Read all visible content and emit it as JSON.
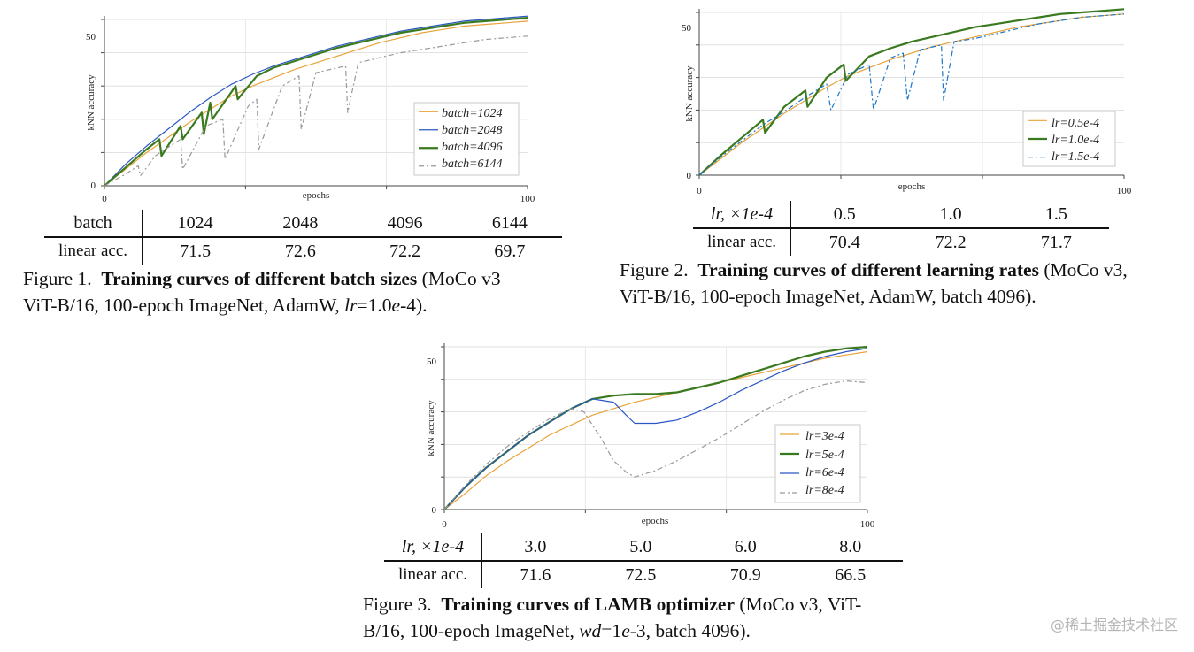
{
  "charts": [
    {
      "type": "line",
      "xlabel": "epochs",
      "ylabel": "kNN accuracy",
      "xlim": [
        0,
        100
      ],
      "ylim": [
        0,
        50
      ],
      "xticks": [
        "0",
        "100"
      ],
      "yticks": [
        "0",
        "50"
      ],
      "legend_position": "lower-right",
      "series": [
        {
          "name": "batch=1024",
          "color": "#e8a33a",
          "width": 1.2,
          "dash": "",
          "x": [
            0,
            5,
            10,
            15,
            20,
            25,
            30,
            35,
            40,
            45,
            50,
            55,
            60,
            65,
            70,
            75,
            80,
            85,
            90,
            95,
            100
          ],
          "y": [
            0,
            5,
            10,
            14.5,
            19,
            23,
            27,
            30,
            32.5,
            35,
            37,
            39,
            41,
            43,
            44.5,
            46,
            47,
            48,
            48.5,
            49,
            49.5
          ]
        },
        {
          "name": "batch=2048",
          "color": "#2b57c4",
          "width": 1.2,
          "dash": "",
          "x": [
            0,
            5,
            10,
            15,
            20,
            25,
            30,
            35,
            40,
            45,
            50,
            55,
            60,
            65,
            70,
            75,
            80,
            85,
            90,
            95,
            100
          ],
          "y": [
            0,
            6.5,
            12,
            17,
            22,
            26.5,
            30.5,
            33.5,
            36,
            38,
            40,
            42,
            43.5,
            45,
            46.5,
            47.5,
            48.5,
            49.5,
            50,
            50.5,
            51
          ]
        },
        {
          "name": "batch=4096",
          "color": "#3a7a1e",
          "width": 2.2,
          "dash": "",
          "x": [
            0,
            5,
            10,
            13,
            13.5,
            18,
            18.5,
            23,
            23.5,
            25,
            25.5,
            31,
            31.5,
            36,
            40,
            45,
            50,
            55,
            60,
            65,
            70,
            75,
            80,
            85,
            90,
            95,
            100
          ],
          "y": [
            0,
            5.5,
            11,
            14,
            9,
            18,
            14,
            22,
            15.5,
            25,
            20,
            30,
            26,
            33,
            35.5,
            37.5,
            39.5,
            41.5,
            43,
            44.5,
            46,
            47,
            48,
            49,
            49.5,
            50,
            50.5
          ]
        },
        {
          "name": "batch=6144",
          "color": "#999999",
          "width": 1.2,
          "dash": "6,3,2,3",
          "x": [
            0,
            5,
            8,
            8.5,
            12,
            18,
            18.5,
            24,
            28,
            28.5,
            34,
            36,
            36.5,
            42,
            46,
            46.5,
            50,
            57,
            57.5,
            60,
            65,
            70,
            75,
            80,
            85,
            90,
            95,
            100
          ],
          "y": [
            0,
            3.5,
            6,
            3,
            9,
            14,
            5,
            18,
            20,
            8,
            24,
            26,
            11,
            30,
            33,
            17,
            34,
            36,
            22,
            37,
            38.5,
            40,
            41,
            42,
            43,
            44,
            44.5,
            45
          ]
        }
      ]
    },
    {
      "type": "line",
      "xlabel": "epochs",
      "ylabel": "kNN accuracy",
      "xlim": [
        0,
        100
      ],
      "ylim": [
        0,
        50
      ],
      "xticks": [
        "0",
        "100"
      ],
      "yticks": [
        "0",
        "50"
      ],
      "legend_position": "lower-right",
      "series": [
        {
          "name": "lr=0.5e-4",
          "color": "#e8a33a",
          "width": 1.2,
          "dash": "",
          "x": [
            0,
            5,
            10,
            15,
            20,
            25,
            30,
            35,
            40,
            45,
            50,
            55,
            60,
            65,
            70,
            75,
            80,
            85,
            90,
            95,
            100
          ],
          "y": [
            0,
            5,
            10,
            14.5,
            19,
            23,
            27,
            30.5,
            33,
            35.5,
            37.5,
            39.5,
            41,
            42.5,
            44,
            45.5,
            46.5,
            47.5,
            48.5,
            49,
            49.5
          ]
        },
        {
          "name": "lr=1.0e-4",
          "color": "#3a7a1e",
          "width": 2.2,
          "dash": "",
          "x": [
            0,
            5,
            10,
            15,
            15.5,
            20,
            25,
            25.5,
            30,
            34,
            34.5,
            40,
            45,
            50,
            55,
            60,
            65,
            70,
            75,
            80,
            85,
            90,
            95,
            100
          ],
          "y": [
            0,
            6,
            11.5,
            17,
            13,
            21,
            26,
            21,
            30,
            34,
            29,
            36.5,
            39,
            41,
            42.5,
            44,
            45.5,
            46.5,
            47.5,
            48.5,
            49.5,
            50,
            50.5,
            51
          ]
        },
        {
          "name": "lr=1.5e-4",
          "color": "#1a77c9",
          "width": 1.2,
          "dash": "6,3,2,3",
          "x": [
            0,
            5,
            10,
            15,
            20,
            25,
            30,
            31,
            35,
            40,
            41,
            45,
            48,
            49,
            52,
            57,
            57.5,
            60,
            65,
            70,
            75,
            80,
            85,
            90,
            95,
            100
          ],
          "y": [
            0,
            5.5,
            10.5,
            15.5,
            19.5,
            24,
            28,
            20,
            31,
            34,
            20,
            36,
            37.5,
            23,
            38.5,
            40,
            23,
            41,
            42,
            43.5,
            45,
            46.5,
            47.5,
            48.5,
            49,
            49.5
          ]
        }
      ]
    },
    {
      "type": "line",
      "xlabel": "epochs",
      "ylabel": "kNN accuracy",
      "xlim": [
        0,
        100
      ],
      "ylim": [
        0,
        50
      ],
      "xticks": [
        "0",
        "100"
      ],
      "yticks": [
        "0",
        "50"
      ],
      "legend_position": "lower-right",
      "series": [
        {
          "name": "lr=3e-4",
          "color": "#e8a33a",
          "width": 1.2,
          "dash": "",
          "x": [
            0,
            5,
            10,
            15,
            20,
            25,
            30,
            35,
            40,
            45,
            50,
            55,
            60,
            65,
            70,
            75,
            80,
            85,
            90,
            95,
            100
          ],
          "y": [
            0,
            5,
            10.5,
            15,
            19,
            23,
            26,
            29,
            31,
            33,
            34.5,
            36,
            37.5,
            39,
            40.5,
            42,
            43.5,
            45,
            46.5,
            47.5,
            48.5
          ]
        },
        {
          "name": "lr=5e-4",
          "color": "#3a7a1e",
          "width": 2.2,
          "dash": "",
          "x": [
            0,
            5,
            10,
            15,
            20,
            25,
            30,
            35,
            40,
            45,
            50,
            55,
            60,
            65,
            70,
            75,
            80,
            85,
            90,
            95,
            100
          ],
          "y": [
            0,
            7,
            13,
            18,
            23,
            27,
            31,
            34,
            35,
            35.5,
            35.5,
            36,
            37.5,
            39,
            41,
            43,
            45,
            47,
            48.5,
            49.5,
            50
          ]
        },
        {
          "name": "lr=6e-4",
          "color": "#2b57c4",
          "width": 1.2,
          "dash": "",
          "x": [
            0,
            5,
            10,
            15,
            20,
            25,
            30,
            35,
            40,
            43,
            45,
            50,
            55,
            60,
            65,
            70,
            75,
            80,
            85,
            90,
            95,
            100
          ],
          "y": [
            0,
            7,
            13,
            18,
            23,
            27,
            31,
            34,
            33,
            29,
            26.5,
            26.5,
            27.5,
            30,
            33,
            36.5,
            39.5,
            42.5,
            45,
            47,
            48.5,
            49.5
          ]
        },
        {
          "name": "lr=8e-4",
          "color": "#999999",
          "width": 1.2,
          "dash": "6,3,2,3",
          "x": [
            0,
            5,
            10,
            15,
            20,
            25,
            30,
            33,
            37,
            40,
            43,
            45,
            50,
            55,
            60,
            65,
            70,
            75,
            80,
            85,
            90,
            95,
            100
          ],
          "y": [
            0,
            7.5,
            14,
            19.5,
            24,
            28,
            31,
            30,
            22,
            15,
            11.5,
            10,
            12,
            15,
            18.5,
            22,
            26,
            30,
            33.5,
            36.5,
            38.5,
            39.5,
            39
          ]
        }
      ]
    }
  ],
  "fig1": {
    "xlabel": "epochs",
    "ylabel": "kNN accuracy",
    "tick_x0": "0",
    "tick_x1": "100",
    "tick_y0": "0",
    "tick_y1": "50",
    "legend": [
      "batch=1024",
      "batch=2048",
      "batch=4096",
      "batch=6144"
    ],
    "table": {
      "header": [
        "batch",
        "1024",
        "2048",
        "4096",
        "6144"
      ],
      "row": [
        "linear acc.",
        "71.5",
        "72.6",
        "72.2",
        "69.7"
      ]
    },
    "caption": {
      "label": "Figure 1.",
      "title": "Training curves of different batch sizes",
      "rest_a": " (MoCo v3",
      "rest_b": "ViT-B/16, 100-epoch ImageNet, AdamW, ",
      "var": "lr",
      "rest_c": "=1.0",
      "var2": "e",
      "rest_d": "-4)."
    }
  },
  "fig2": {
    "xlabel": "epochs",
    "ylabel": "kNN accuracy",
    "tick_x0": "0",
    "tick_x1": "100",
    "tick_y0": "0",
    "tick_y1": "50",
    "legend": [
      "lr=0.5e-4",
      "lr=1.0e-4",
      "lr=1.5e-4"
    ],
    "table": {
      "header": [
        "lr, ×1e-4",
        "0.5",
        "1.0",
        "1.5"
      ],
      "row": [
        "linear acc.",
        "70.4",
        "72.2",
        "71.7"
      ]
    },
    "caption": {
      "label": "Figure 2.",
      "title": "Training curves of different learning rates",
      "rest_a": " (MoCo v3,",
      "rest_b": "ViT-B/16, 100-epoch ImageNet, AdamW, batch 4096)."
    }
  },
  "fig3": {
    "xlabel": "epochs",
    "ylabel": "kNN accuracy",
    "tick_x0": "0",
    "tick_x1": "100",
    "tick_y0": "0",
    "tick_y1": "50",
    "legend": [
      "lr=3e-4",
      "lr=5e-4",
      "lr=6e-4",
      "lr=8e-4"
    ],
    "table": {
      "header": [
        "lr, ×1e-4",
        "3.0",
        "5.0",
        "6.0",
        "8.0"
      ],
      "row": [
        "linear acc.",
        "71.6",
        "72.5",
        "70.9",
        "66.5"
      ]
    },
    "caption": {
      "label": "Figure 3.",
      "title": "Training curves of LAMB optimizer",
      "rest_a": " (MoCo v3, ViT-",
      "rest_b": "B/16, 100-epoch ImageNet, ",
      "var": "wd",
      "rest_c": "=1",
      "var2": "e",
      "rest_d": "-3, batch 4096)."
    }
  },
  "watermark": "@稀土掘金技术社区"
}
